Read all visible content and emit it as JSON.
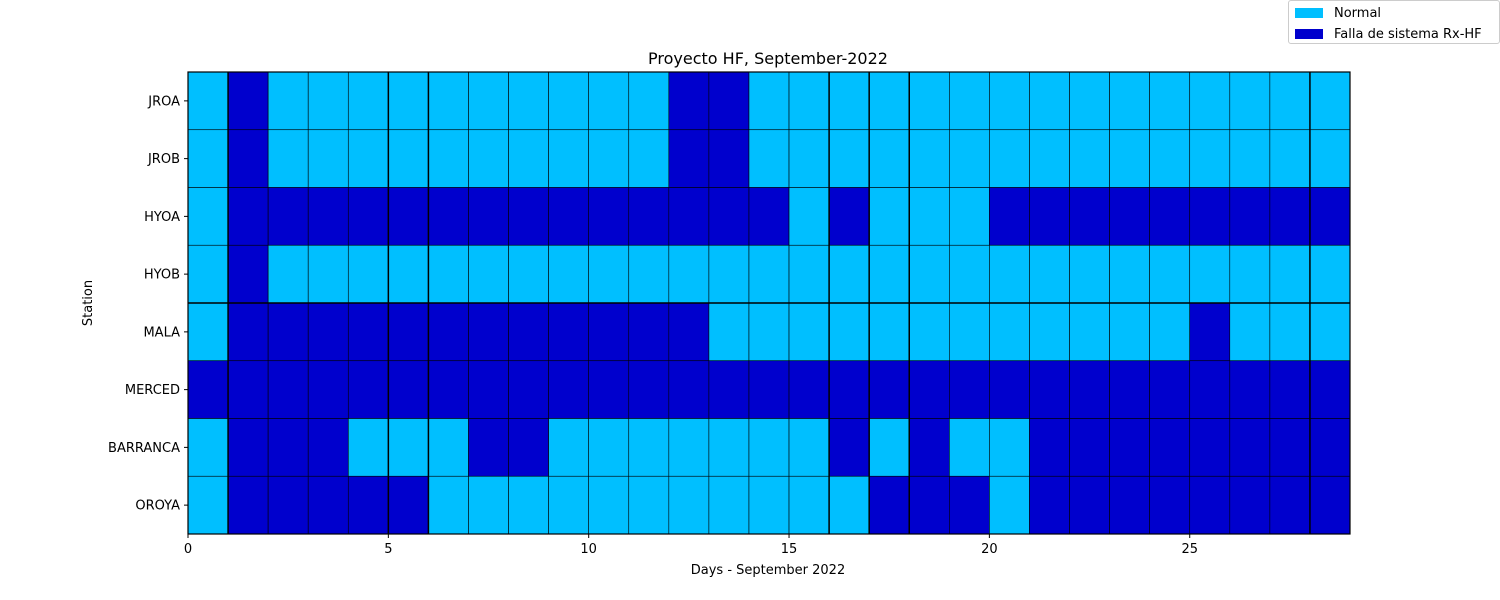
{
  "chart_data": {
    "type": "heatmap",
    "title": "Proyecto HF, September-2022",
    "xlabel": "Days - September 2022",
    "ylabel": "Station",
    "xlim": [
      0,
      29
    ],
    "xticks": [
      0,
      5,
      10,
      15,
      20,
      25
    ],
    "stations": [
      "JROA",
      "JROB",
      "HYOA",
      "HYOB",
      "MALA",
      "MERCED",
      "BARRANCA",
      "OROYA"
    ],
    "status_codes": {
      "0": "Normal",
      "1": "Falla de  sistema Rx-HF"
    },
    "colors": {
      "normal": "#00bfff",
      "fault": "#0000cd",
      "grid": "#000000"
    },
    "legend": {
      "position": "top-right",
      "entries": [
        {
          "label": "Normal",
          "color": "#00bfff"
        },
        {
          "label": "Falla de  sistema Rx-HF",
          "color": "#0000cd"
        }
      ]
    },
    "values": [
      [
        0,
        1,
        0,
        0,
        0,
        0,
        0,
        0,
        0,
        0,
        0,
        0,
        1,
        1,
        0,
        0,
        0,
        0,
        0,
        0,
        0,
        0,
        0,
        0,
        0,
        0,
        0,
        0,
        0
      ],
      [
        0,
        1,
        0,
        0,
        0,
        0,
        0,
        0,
        0,
        0,
        0,
        0,
        1,
        1,
        0,
        0,
        0,
        0,
        0,
        0,
        0,
        0,
        0,
        0,
        0,
        0,
        0,
        0,
        0
      ],
      [
        0,
        1,
        1,
        1,
        1,
        1,
        1,
        1,
        1,
        1,
        1,
        1,
        1,
        1,
        1,
        0,
        1,
        0,
        0,
        0,
        1,
        1,
        1,
        1,
        1,
        1,
        1,
        1,
        1
      ],
      [
        0,
        1,
        0,
        0,
        0,
        0,
        0,
        0,
        0,
        0,
        0,
        0,
        0,
        0,
        0,
        0,
        0,
        0,
        0,
        0,
        0,
        0,
        0,
        0,
        0,
        0,
        0,
        0,
        0
      ],
      [
        0,
        1,
        1,
        1,
        1,
        1,
        1,
        1,
        1,
        1,
        1,
        1,
        1,
        0,
        0,
        0,
        0,
        0,
        0,
        0,
        0,
        0,
        0,
        0,
        0,
        1,
        0,
        0,
        0
      ],
      [
        1,
        1,
        1,
        1,
        1,
        1,
        1,
        1,
        1,
        1,
        1,
        1,
        1,
        1,
        1,
        1,
        1,
        1,
        1,
        1,
        1,
        1,
        1,
        1,
        1,
        1,
        1,
        1,
        1
      ],
      [
        0,
        1,
        1,
        1,
        0,
        0,
        0,
        1,
        1,
        0,
        0,
        0,
        0,
        0,
        0,
        0,
        1,
        0,
        1,
        0,
        0,
        1,
        1,
        1,
        1,
        1,
        1,
        1,
        1
      ],
      [
        0,
        1,
        1,
        1,
        1,
        1,
        0,
        0,
        0,
        0,
        0,
        0,
        0,
        0,
        0,
        0,
        0,
        1,
        1,
        1,
        0,
        1,
        1,
        1,
        1,
        1,
        1,
        1,
        1
      ]
    ]
  }
}
